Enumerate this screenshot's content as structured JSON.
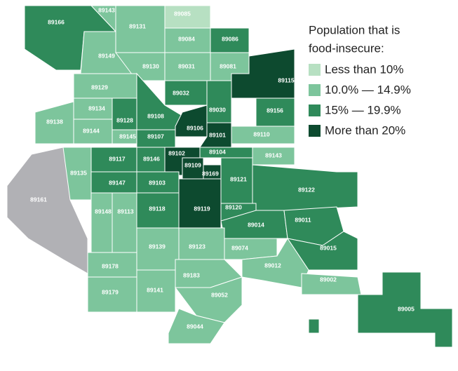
{
  "legend": {
    "title": [
      "Population that is",
      "food-insecure:"
    ],
    "items": [
      {
        "label": "Less than 10%",
        "color": "#b7e0c2"
      },
      {
        "label": "10.0% — 14.9%",
        "color": "#7dc59c"
      },
      {
        "label": "15% — 19.9%",
        "color": "#2f8a5a"
      },
      {
        "label": "More than 20%",
        "color": "#0d4a2f"
      }
    ],
    "no_data_color": "#b1b1b5"
  },
  "regions": [
    {
      "label": "89166",
      "level": 2
    },
    {
      "label": "89143",
      "level": 1
    },
    {
      "label": "89131",
      "level": 1
    },
    {
      "label": "89085",
      "level": 0
    },
    {
      "label": "89084",
      "level": 1
    },
    {
      "label": "89086",
      "level": 2
    },
    {
      "label": "89149",
      "level": 1
    },
    {
      "label": "89130",
      "level": 1
    },
    {
      "label": "89031",
      "level": 1
    },
    {
      "label": "89081",
      "level": 1
    },
    {
      "label": "89115",
      "level": 3
    },
    {
      "label": "89129",
      "level": 1
    },
    {
      "label": "89032",
      "level": 2
    },
    {
      "label": "89030",
      "level": 2
    },
    {
      "label": "89156",
      "level": 2
    },
    {
      "label": "89108",
      "level": 2
    },
    {
      "label": "89106",
      "level": 3
    },
    {
      "label": "89101",
      "level": 3
    },
    {
      "label": "89128",
      "level": 2
    },
    {
      "label": "89134",
      "level": 1
    },
    {
      "label": "89138",
      "level": 1
    },
    {
      "label": "89144",
      "level": 1
    },
    {
      "label": "89145",
      "level": 1
    },
    {
      "label": "89107",
      "level": 2
    },
    {
      "label": "89110",
      "level": 1
    },
    {
      "label": "89135",
      "level": 1
    },
    {
      "label": "89117",
      "level": 2
    },
    {
      "label": "89146",
      "level": 2
    },
    {
      "label": "89102",
      "level": 3
    },
    {
      "label": "89104",
      "level": 2
    },
    {
      "label": "89143",
      "level": 1
    },
    {
      "label": "89109",
      "level": 3
    },
    {
      "label": "89169",
      "level": 3
    },
    {
      "label": "89147",
      "level": 2
    },
    {
      "label": "89103",
      "level": 2
    },
    {
      "label": "89121",
      "level": 2
    },
    {
      "label": "89122",
      "level": 2
    },
    {
      "label": "89161",
      "level": null
    },
    {
      "label": "89148",
      "level": 1
    },
    {
      "label": "89113",
      "level": 1
    },
    {
      "label": "89118",
      "level": 2
    },
    {
      "label": "89119",
      "level": 3
    },
    {
      "label": "89120",
      "level": 2
    },
    {
      "label": "89014",
      "level": 2
    },
    {
      "label": "89011",
      "level": 2
    },
    {
      "label": "89015",
      "level": 2
    },
    {
      "label": "89139",
      "level": 1
    },
    {
      "label": "89123",
      "level": 1
    },
    {
      "label": "89074",
      "level": 1
    },
    {
      "label": "89012",
      "level": 1
    },
    {
      "label": "89178",
      "level": 1
    },
    {
      "label": "89179",
      "level": 1
    },
    {
      "label": "89141",
      "level": 1
    },
    {
      "label": "89183",
      "level": 1
    },
    {
      "label": "89002",
      "level": 1
    },
    {
      "label": "89052",
      "level": 1
    },
    {
      "label": "89044",
      "level": 1
    },
    {
      "label": "89005",
      "level": 2
    }
  ]
}
